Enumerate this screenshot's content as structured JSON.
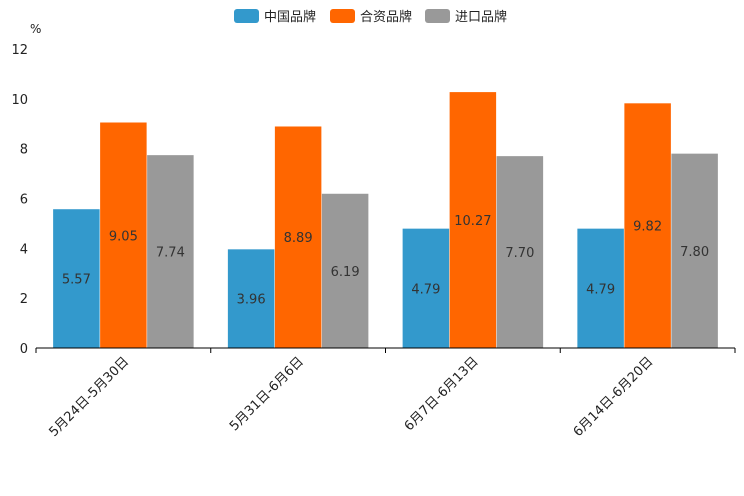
{
  "chart_data": {
    "type": "bar",
    "title": "",
    "unit_label": "%",
    "xlabel": "",
    "ylabel": "",
    "ylim": [
      0,
      12
    ],
    "yticks": [
      0,
      2,
      4,
      6,
      8,
      10,
      12
    ],
    "grid": false,
    "legend_position": "top-center",
    "categories": [
      "5月24日-5月30日",
      "5月31日-6月6日",
      "6月7日-6月13日",
      "6月14日-6月20日"
    ],
    "series": [
      {
        "name": "中国品牌",
        "color": "#3399cc",
        "values": [
          5.57,
          3.96,
          4.79,
          4.79
        ],
        "labels": [
          "5.57",
          "3.96",
          "4.79",
          "4.79"
        ]
      },
      {
        "name": "合资品牌",
        "color": "#ff6600",
        "values": [
          9.05,
          8.89,
          10.27,
          9.82
        ],
        "labels": [
          "9.05",
          "8.89",
          "10.27",
          "9.82"
        ]
      },
      {
        "name": "进口品牌",
        "color": "#999999",
        "values": [
          7.74,
          6.19,
          7.7,
          7.8
        ],
        "labels": [
          "7.74",
          "6.19",
          "7.70",
          "7.80"
        ]
      }
    ]
  }
}
